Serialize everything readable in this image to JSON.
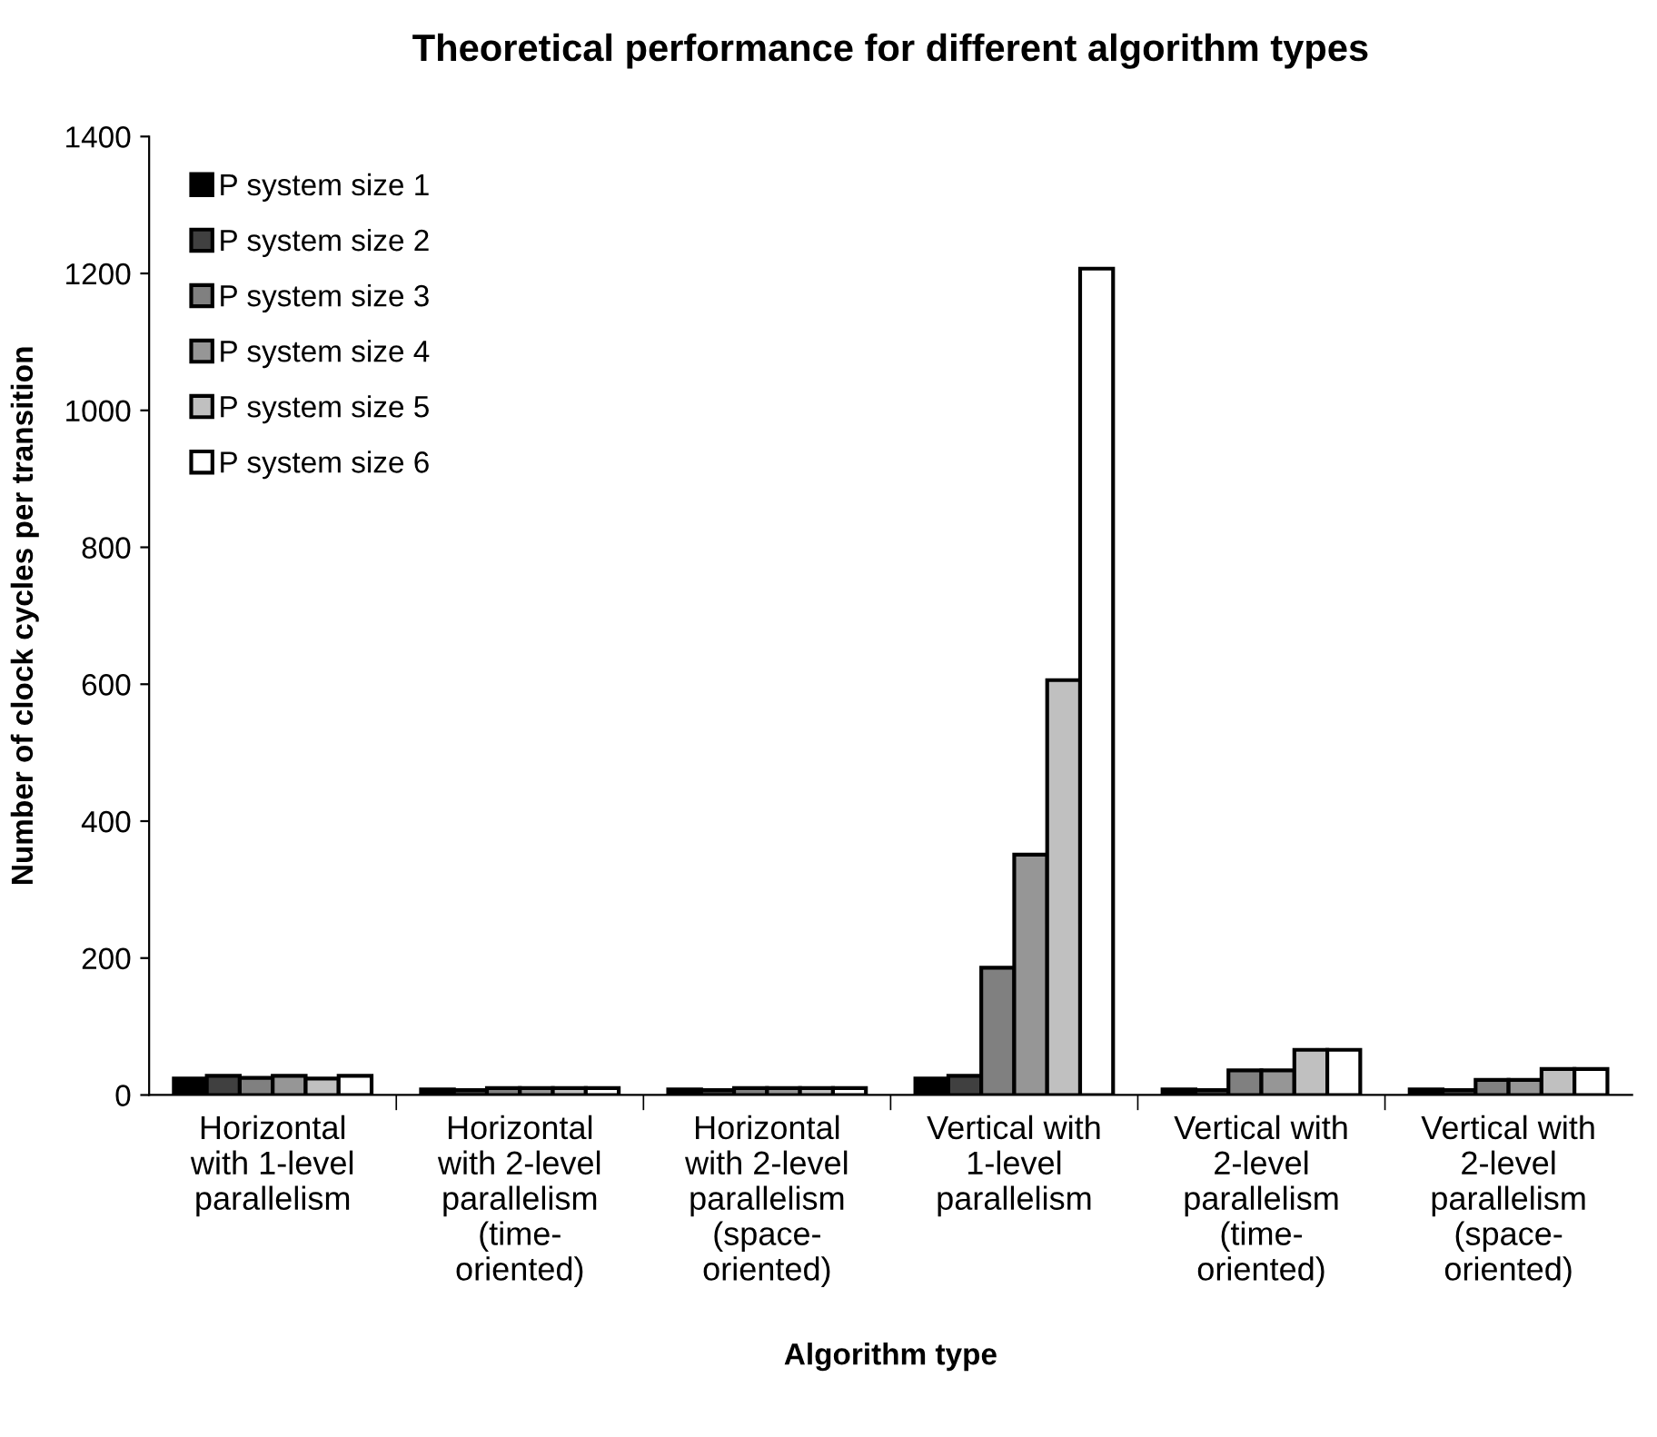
{
  "chart_data": {
    "type": "bar",
    "title": "Theoretical performance for different algorithm types",
    "xlabel": "Algorithm type",
    "ylabel": "Number of clock cycles per transition",
    "categories": [
      "Horizontal\nwith 1-level\nparallelism",
      "Horizontal\nwith 2-level\nparallelism\n(time-\noriented)",
      "Horizontal\nwith 2-level\nparallelism\n(space-\noriented)",
      "Vertical with\n1-level\nparallelism",
      "Vertical with\n2-level\nparallelism\n(time-\noriented)",
      "Vertical with\n2-level\nparallelism\n(space-\noriented)"
    ],
    "series": [
      {
        "name": "P system size 1",
        "color": "#000000",
        "values": [
          24,
          8,
          8,
          24,
          8,
          8
        ]
      },
      {
        "name": "P system size 2",
        "color": "#404040",
        "values": [
          28,
          7,
          7,
          28,
          7,
          7
        ]
      },
      {
        "name": "P system size 3",
        "color": "#808080",
        "values": [
          25,
          10,
          10,
          186,
          36,
          22
        ]
      },
      {
        "name": "P system size 4",
        "color": "#969696",
        "values": [
          28,
          10,
          10,
          351,
          36,
          22
        ]
      },
      {
        "name": "P system size 5",
        "color": "#c0c0c0",
        "values": [
          24,
          10,
          10,
          606,
          66,
          38
        ]
      },
      {
        "name": "P system size 6",
        "color": "#ffffff",
        "values": [
          28,
          10,
          10,
          1207,
          66,
          38
        ]
      }
    ],
    "ylim": [
      0,
      1400
    ],
    "yticks": [
      0,
      200,
      400,
      600,
      800,
      1000,
      1200,
      1400
    ],
    "grid": false,
    "legend": "top left"
  }
}
